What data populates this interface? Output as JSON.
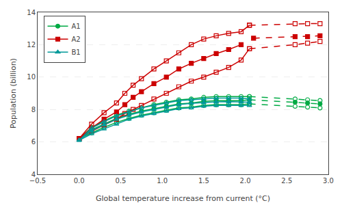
{
  "chart_data": {
    "type": "line",
    "xlabel": "Global temperature increase from current (°C)",
    "ylabel": "Population (billion)",
    "xlim": [
      -0.5,
      3.0
    ],
    "ylim": [
      4,
      14
    ],
    "xticks": [
      {
        "value": -0.5,
        "label": "−0.5"
      },
      {
        "value": 0.0,
        "label": "0.0"
      },
      0.5,
      {
        "value": 1.0,
        "label": "1.0"
      },
      1.5,
      {
        "value": 2.0,
        "label": "2.0"
      },
      2.5,
      {
        "value": 3.0,
        "label": "3.0"
      }
    ],
    "yticks": [
      4,
      6,
      8,
      10,
      12,
      14
    ],
    "grid": "y",
    "legend": "upper left",
    "series": [
      {
        "name": "A1",
        "color": "#00aa44",
        "marker": "circle",
        "line_style": "solid",
        "x": [
          0.0,
          0.15,
          0.3,
          0.45,
          0.6,
          0.75,
          0.9,
          1.05,
          1.2,
          1.35,
          1.5,
          1.65,
          1.8,
          1.95,
          2.05
        ],
        "values": [
          6.2,
          6.75,
          7.1,
          7.45,
          7.7,
          7.9,
          8.05,
          8.2,
          8.35,
          8.4,
          8.5,
          8.55,
          8.55,
          8.55,
          8.6
        ]
      },
      {
        "color": "#00aa44",
        "marker": "circle",
        "line_style": "dashed",
        "x": [
          2.05,
          2.6,
          2.75,
          2.9
        ],
        "values": [
          8.6,
          8.45,
          8.4,
          8.35
        ]
      },
      {
        "color": "#00aa44",
        "marker": "circle-open",
        "line_style": "solid",
        "x": [
          0.0,
          0.15,
          0.3,
          0.45,
          0.6,
          0.75,
          0.9,
          1.05,
          1.2,
          1.35,
          1.5,
          1.65,
          1.8,
          1.95,
          2.05
        ],
        "values": [
          6.2,
          6.9,
          7.3,
          7.65,
          7.9,
          8.1,
          8.3,
          8.45,
          8.6,
          8.65,
          8.75,
          8.8,
          8.8,
          8.8,
          8.8
        ]
      },
      {
        "color": "#00aa44",
        "marker": "circle-open",
        "line_style": "dashed",
        "x": [
          2.05,
          2.6,
          2.75,
          2.9
        ],
        "values": [
          8.8,
          8.65,
          8.6,
          8.55
        ]
      },
      {
        "color": "#00aa44",
        "marker": "circle-open",
        "line_style": "solid",
        "x": [
          0.0,
          0.15,
          0.3,
          0.45,
          0.6,
          0.75,
          0.9,
          1.05,
          1.2,
          1.35,
          1.5,
          1.65,
          1.8,
          1.95,
          2.05
        ],
        "values": [
          6.2,
          6.55,
          6.9,
          7.2,
          7.45,
          7.65,
          7.8,
          7.95,
          8.1,
          8.15,
          8.25,
          8.3,
          8.3,
          8.3,
          8.35
        ]
      },
      {
        "color": "#00aa44",
        "marker": "circle-open",
        "line_style": "dashed",
        "x": [
          2.05,
          2.6,
          2.75,
          2.9
        ],
        "values": [
          8.35,
          8.2,
          8.15,
          8.1
        ]
      },
      {
        "name": "A2",
        "color": "#cc0000",
        "marker": "square",
        "line_style": "solid",
        "x": [
          0.0,
          0.15,
          0.3,
          0.45,
          0.55,
          0.65,
          0.75,
          0.9,
          1.05,
          1.2,
          1.35,
          1.5,
          1.65,
          1.8,
          1.95
        ],
        "values": [
          6.2,
          6.85,
          7.4,
          7.85,
          8.3,
          8.75,
          9.1,
          9.6,
          10.0,
          10.5,
          10.85,
          11.15,
          11.45,
          11.7,
          12.0
        ]
      },
      {
        "color": "#cc0000",
        "marker": "square",
        "line_style": "dashed",
        "x": [
          2.1,
          2.6,
          2.75,
          2.9
        ],
        "values": [
          12.4,
          12.5,
          12.5,
          12.55
        ]
      },
      {
        "color": "#cc0000",
        "marker": "square-open",
        "line_style": "solid",
        "x": [
          0.0,
          0.15,
          0.3,
          0.45,
          0.55,
          0.65,
          0.75,
          0.9,
          1.05,
          1.2,
          1.35,
          1.5,
          1.65,
          1.8,
          1.95,
          2.05
        ],
        "values": [
          6.2,
          7.1,
          7.8,
          8.4,
          9.0,
          9.5,
          9.9,
          10.5,
          11.0,
          11.5,
          12.0,
          12.35,
          12.55,
          12.7,
          12.8,
          13.2
        ]
      },
      {
        "color": "#cc0000",
        "marker": "square-open",
        "line_style": "dashed",
        "x": [
          2.05,
          2.6,
          2.75,
          2.9
        ],
        "values": [
          13.2,
          13.3,
          13.3,
          13.3
        ]
      },
      {
        "color": "#cc0000",
        "marker": "square-open",
        "line_style": "solid",
        "x": [
          0.0,
          0.15,
          0.3,
          0.45,
          0.55,
          0.65,
          0.75,
          0.9,
          1.05,
          1.2,
          1.35,
          1.5,
          1.65,
          1.8,
          1.95,
          2.05
        ],
        "values": [
          6.2,
          6.65,
          7.05,
          7.4,
          7.75,
          8.0,
          8.25,
          8.65,
          9.0,
          9.4,
          9.75,
          10.0,
          10.3,
          10.6,
          11.05,
          11.75
        ]
      },
      {
        "color": "#cc0000",
        "marker": "square-open",
        "line_style": "dashed",
        "x": [
          2.05,
          2.6,
          2.75,
          2.9
        ],
        "values": [
          11.75,
          12.0,
          12.1,
          12.2
        ]
      },
      {
        "name": "B1",
        "color": "#009999",
        "marker": "triangle-up",
        "line_style": "solid",
        "x": [
          0.0,
          0.15,
          0.3,
          0.45,
          0.6,
          0.75,
          0.9,
          1.05,
          1.2,
          1.35,
          1.5,
          1.65,
          1.8,
          1.95,
          2.05
        ],
        "values": [
          6.1,
          6.7,
          7.05,
          7.4,
          7.65,
          7.85,
          8.0,
          8.15,
          8.3,
          8.38,
          8.43,
          8.47,
          8.48,
          8.48,
          8.45
        ]
      },
      {
        "color": "#009999",
        "marker": "triangle-up-open",
        "line_style": "solid",
        "x": [
          0.0,
          0.15,
          0.3,
          0.45,
          0.6,
          0.75,
          0.9,
          1.05,
          1.2,
          1.35,
          1.5,
          1.65,
          1.8,
          1.95,
          2.05
        ],
        "values": [
          6.1,
          6.85,
          7.25,
          7.6,
          7.85,
          8.1,
          8.25,
          8.4,
          8.55,
          8.6,
          8.65,
          8.7,
          8.7,
          8.7,
          8.65
        ]
      },
      {
        "color": "#009999",
        "marker": "triangle-up-open",
        "line_style": "solid",
        "x": [
          0.0,
          0.15,
          0.3,
          0.45,
          0.6,
          0.75,
          0.9,
          1.05,
          1.2,
          1.35,
          1.5,
          1.65,
          1.8,
          1.95,
          2.05
        ],
        "values": [
          6.1,
          6.5,
          6.8,
          7.1,
          7.4,
          7.6,
          7.75,
          7.9,
          8.05,
          8.1,
          8.2,
          8.25,
          8.25,
          8.25,
          8.25
        ]
      }
    ]
  }
}
